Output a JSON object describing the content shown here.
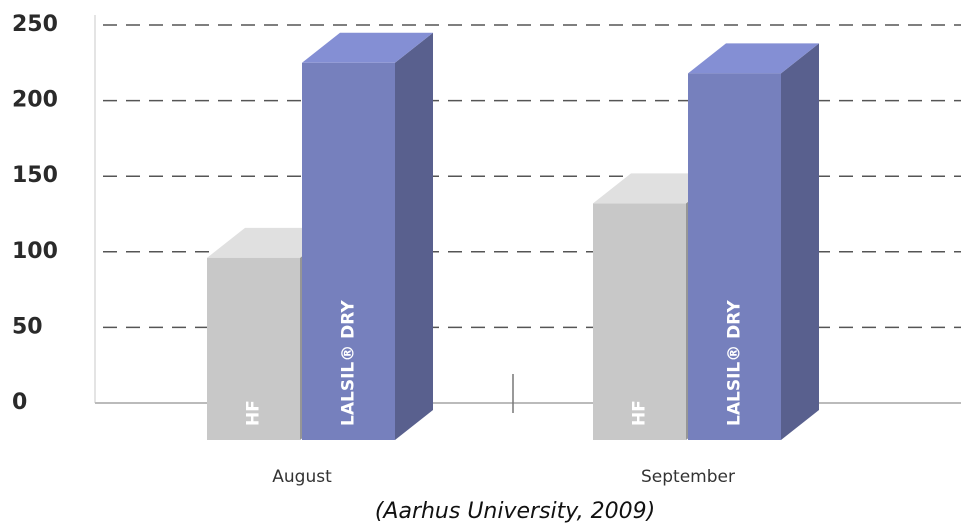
{
  "chart_data": {
    "type": "bar3d",
    "caption": "(Aarhus University, 2009)",
    "categories": [
      "August",
      "September"
    ],
    "series": [
      {
        "name": "HF",
        "color": "#c8c8c8",
        "values": [
          96,
          132
        ]
      },
      {
        "name": "LALSIL® DRY",
        "color": "#7680bd",
        "values": [
          225,
          218
        ]
      }
    ],
    "ylim": [
      0,
      250
    ],
    "yticks": [
      0,
      50,
      100,
      150,
      200,
      250
    ],
    "grid": true
  }
}
